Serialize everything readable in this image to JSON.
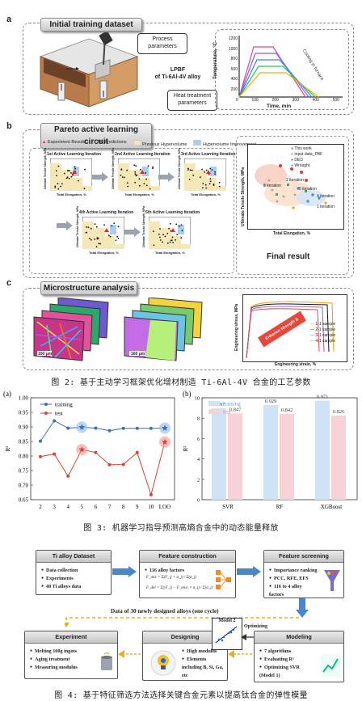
{
  "fig2": {
    "panel_a": {
      "letter": "a",
      "title": "Initial training dataset",
      "process": "Process\nparameters",
      "lpbf": "LPBF\nof Ti-6Al-4V alloy",
      "heat": "Heat treatment\nparameters",
      "ylabel": "Temperature, °C",
      "xlabel": "Time, min",
      "cool": "Cooling in furnace",
      "yticks": [
        "200",
        "400",
        "600",
        "800",
        "1000",
        "1200"
      ],
      "xticks": [
        "0",
        "100",
        "200",
        "300",
        "400",
        "500"
      ]
    },
    "panel_b": {
      "letter": "b",
      "title": "Pareto active learning circuit",
      "legend": [
        "Experiment Results",
        "ML Predictions",
        "Previous Hypervolume",
        "Hypervolume Improvement"
      ],
      "iters": [
        "1st Active Learning Iteration",
        "2nd Active Learning Iteration",
        "3rd Active Learning Iteration",
        "4th Active Learning Iteration",
        "5th Active Learning Iteration"
      ],
      "ylabel": "Ultimate Tensile Strength, MPa",
      "xlabel": "Total Elongation, %",
      "final": "Final result",
      "final_legend": [
        "This work",
        "Input data_PBF",
        "DED",
        "Wrought"
      ],
      "final_labels": [
        "2 iteration",
        "3 iteration",
        "4 iteration",
        "5 iteration",
        "1 iteration"
      ]
    },
    "panel_c": {
      "letter": "c",
      "title": "Microstructure analysis",
      "scale1": "100 μm",
      "scale2": "160 μm",
      "ylabel": "Engineering stress, MPa",
      "xlabel": "Engineering strain, %",
      "arrow": "Enhance strength & elongation",
      "legend": [
        "1-1 sample",
        "2-1 sample",
        "3-1 sample",
        "4-1 sample"
      ]
    },
    "caption": "图 2: 基于主动学习框架优化增材制造 Ti-6Al-4V 合金的工艺参数"
  },
  "fig3": {
    "chart_data": [
      {
        "type": "line",
        "panel": "(a)",
        "categories": [
          "2",
          "3",
          "4",
          "5",
          "6",
          "7",
          "8",
          "9",
          "10",
          "LOO"
        ],
        "series": [
          {
            "name": "training",
            "values": [
              0.851,
              0.921,
              0.896,
              0.899,
              0.896,
              0.887,
              0.895,
              0.895,
              0.895,
              0.896
            ]
          },
          {
            "name": "test",
            "values": [
              0.798,
              0.807,
              0.731,
              0.822,
              0.812,
              0.77,
              0.771,
              0.812,
              0.667,
              0.848
            ]
          }
        ],
        "ylabel": "R²",
        "ylim": [
          0.65,
          1.0
        ],
        "yticks": [
          "0.65",
          "0.70",
          "0.75",
          "0.80",
          "0.85",
          "0.90",
          "0.95",
          "1.00"
        ],
        "highlight_training": [
          5,
          "LOO"
        ],
        "highlight_test": [
          5,
          "LOO"
        ]
      },
      {
        "type": "bar",
        "panel": "(b)",
        "categories": [
          "SVR",
          "RF",
          "XGBoost"
        ],
        "series": [
          {
            "name": "training",
            "values": [
              0.897,
              0.929,
              0.971
            ]
          },
          {
            "name": "test",
            "values": [
              0.847,
              0.842,
              0.826
            ]
          }
        ],
        "labels": {
          "training": [
            "0.897",
            "0.929",
            "0.971"
          ],
          "test": [
            "0.847",
            "0.842",
            "0.826"
          ]
        },
        "ylabel": "R²",
        "ylim": [
          0,
          1
        ],
        "yticks": [
          "0",
          "2",
          "4",
          "6",
          "8",
          "10"
        ]
      }
    ],
    "caption": "图 3: 机器学习指导预测高熵合金中的动态能量释放"
  },
  "fig4": {
    "dataset": {
      "title": "Ti alloy Dataset",
      "items": [
        "Data collection",
        "Experiments",
        "40 Ti alloys data"
      ]
    },
    "feature": {
      "title": "Feature construction",
      "items": [
        "116 alloy factors"
      ],
      "f1": "F_mix = Σ(F_ij × σ_j) / Σ(σ_j)",
      "f2": "F_del = Σ(|F_ij − F_mix| × σ_j) / Σ(σ_j)"
    },
    "screening": {
      "title": "Feature screening",
      "items": [
        "Importance ranking",
        "PCC, RFE, EFS",
        "116 to 4 alloy factors"
      ]
    },
    "cycle": "Data of 30 newly designed alloys (one cycle)",
    "experiment": {
      "title": "Experiment",
      "items": [
        "Melting 100g ingots",
        "Aging treatment",
        "Measuring modulus"
      ]
    },
    "designing": {
      "title": "Designing",
      "items": [
        "High modulus",
        "Elements including B, Si, Ga, etc"
      ]
    },
    "model2": "Model 2",
    "optimizing": "Optimizing",
    "modeling": {
      "title": "Modeling",
      "items": [
        "7 algorithms",
        "Evaluating R²",
        "Optimizing SVR (Model 1)"
      ]
    },
    "caption": "图 4: 基于特征筛选方法选择关键合金元素以提高钛合金的弹性模量"
  }
}
